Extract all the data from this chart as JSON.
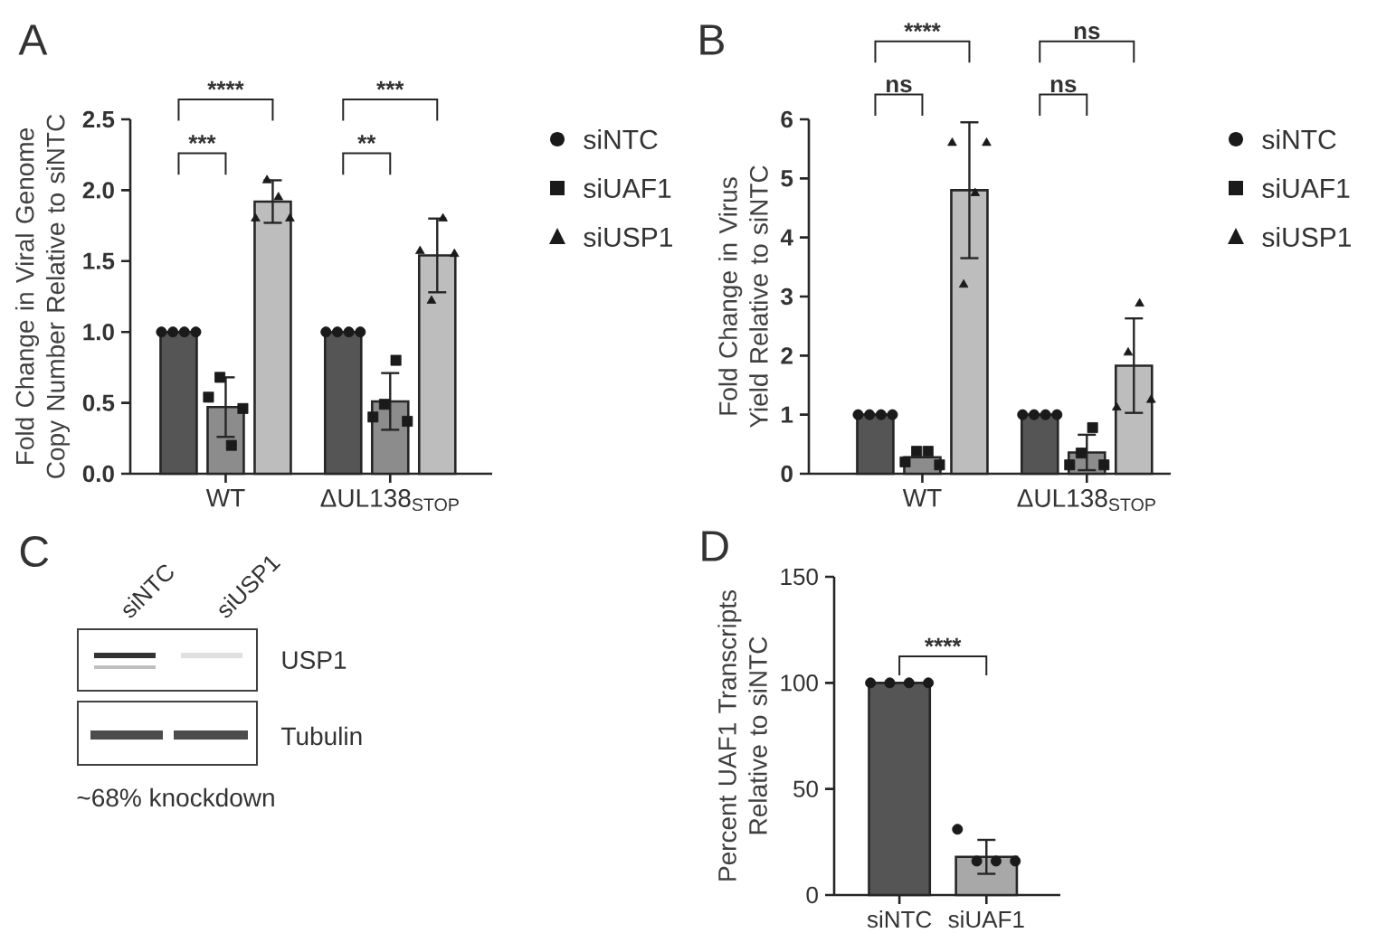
{
  "chart_data": [
    {
      "type": "bar",
      "title": "A",
      "ylabel": "Fold Change in Viral Genome Copy Number Relative to siNTC",
      "categories": [
        "WT",
        "ΔUL138$_{STOP}$"
      ],
      "ylim": [
        0,
        2.5
      ],
      "yticks": [
        {
          "value": 0,
          "label": "0.0"
        },
        {
          "value": 0.5,
          "label": "0.5"
        },
        {
          "value": 1,
          "label": "1.0"
        },
        {
          "value": 1.5,
          "label": "1.5"
        },
        {
          "value": 2,
          "label": "2.0"
        },
        {
          "value": 2.5,
          "label": "2.5"
        }
      ],
      "legend": "right",
      "annotations": [
        "***",
        "****",
        "**",
        "***"
      ],
      "series": [
        {
          "type": "bar",
          "color": "#555555",
          "values": [
            1.0,
            1.0
          ]
        },
        {
          "type": "bar",
          "color": "#8c8c8c",
          "values": [
            0.47,
            0.51
          ],
          "errors": [
            0.21,
            0.2
          ]
        },
        {
          "type": "bar",
          "color": "#bdbdbd",
          "values": [
            1.92,
            1.54
          ],
          "errors": [
            0.15,
            0.26
          ]
        },
        {
          "type": "scatter",
          "name": "siNTC",
          "color": "#1a1a1a",
          "marker": "circle",
          "x": [
            "WT",
            "WT",
            "WT",
            "WT",
            "ΔUL138$_{STOP}$",
            "ΔUL138$_{STOP}$",
            "ΔUL138$_{STOP}$",
            "ΔUL138$_{STOP}$"
          ],
          "values": [
            1.0,
            1.0,
            1.0,
            1.0,
            1.0,
            1.0,
            1.0,
            1.0
          ]
        },
        {
          "type": "scatter",
          "name": "siUAF1",
          "color": "#1a1a1a",
          "marker": "square",
          "x": [
            "WT",
            "WT",
            "WT",
            "WT",
            "ΔUL138$_{STOP}$",
            "ΔUL138$_{STOP}$",
            "ΔUL138$_{STOP}$",
            "ΔUL138$_{STOP}$"
          ],
          "values": [
            0.54,
            0.68,
            0.2,
            0.46,
            0.4,
            0.49,
            0.8,
            0.37
          ]
        },
        {
          "type": "scatter",
          "name": "siUSP1",
          "color": "#1a1a1a",
          "marker": "triangle",
          "x": [
            "WT",
            "WT",
            "WT",
            "WT",
            "ΔUL138$_{STOP}$",
            "ΔUL138$_{STOP}$",
            "ΔUL138$_{STOP}$",
            "ΔUL138$_{STOP}$"
          ],
          "values": [
            1.8,
            2.07,
            1.95,
            1.8,
            1.57,
            1.22,
            1.8,
            1.55
          ]
        }
      ]
    },
    {
      "type": "bar",
      "title": "B",
      "ylabel": "Fold Change in Virus Yield Relative to siNTC",
      "categories": [
        "WT",
        "ΔUL138$_{STOP}$"
      ],
      "ylim": [
        0,
        6
      ],
      "yticks": [
        0,
        1,
        2,
        3,
        4,
        5,
        6
      ],
      "legend": "right",
      "annotations": [
        "ns",
        "****",
        "ns",
        "ns"
      ],
      "series": [
        {
          "type": "bar",
          "color": "#555555",
          "values": [
            1.0,
            1.0
          ]
        },
        {
          "type": "bar",
          "color": "#8c8c8c",
          "values": [
            0.28,
            0.36
          ],
          "errors": [
            null,
            0.3
          ]
        },
        {
          "type": "bar",
          "color": "#bdbdbd",
          "values": [
            4.8,
            1.83
          ],
          "errors": [
            1.15,
            0.8
          ]
        },
        {
          "type": "scatter",
          "name": "siNTC",
          "color": "#1a1a1a",
          "marker": "circle",
          "x": [
            "WT",
            "WT",
            "WT",
            "WT",
            "ΔUL138$_{STOP}$",
            "ΔUL138$_{STOP}$",
            "ΔUL138$_{STOP}$",
            "ΔUL138$_{STOP}$"
          ],
          "values": [
            1.0,
            1.0,
            1.0,
            1.0,
            1.0,
            1.0,
            1.0,
            1.0
          ]
        },
        {
          "type": "scatter",
          "name": "siUAF1",
          "color": "#1a1a1a",
          "marker": "square",
          "x": [
            "WT",
            "WT",
            "WT",
            "WT",
            "ΔUL138$_{STOP}$",
            "ΔUL138$_{STOP}$",
            "ΔUL138$_{STOP}$",
            "ΔUL138$_{STOP}$"
          ],
          "values": [
            0.2,
            0.38,
            0.38,
            0.15,
            0.15,
            0.35,
            0.78,
            0.15
          ]
        },
        {
          "type": "scatter",
          "name": "siUSP1",
          "color": "#1a1a1a",
          "marker": "triangle",
          "x": [
            "WT",
            "WT",
            "WT",
            "WT",
            "ΔUL138$_{STOP}$",
            "ΔUL138$_{STOP}$",
            "ΔUL138$_{STOP}$",
            "ΔUL138$_{STOP}$"
          ],
          "values": [
            5.6,
            3.2,
            4.75,
            5.6,
            1.12,
            2.05,
            2.88,
            1.25
          ]
        }
      ]
    },
    {
      "type": "other",
      "title": "C",
      "annotations": [
        "siNTC",
        "siUSP1",
        "USP1",
        "Tubulin",
        "~68% knockdown"
      ]
    },
    {
      "type": "bar",
      "title": "D",
      "ylabel": "Percent UAF1 Transcripts Relative to siNTC",
      "categories": [
        "siNTC",
        "siUAF1"
      ],
      "ylim": [
        0,
        150
      ],
      "yticks": [
        0,
        50,
        100,
        150
      ],
      "annotations": [
        "****"
      ],
      "series": [
        {
          "type": "bar",
          "colors": [
            "#555555",
            "#a8a8a8"
          ],
          "values": [
            100,
            18
          ],
          "errors": [
            null,
            8
          ]
        },
        {
          "type": "scatter",
          "color": "#1a1a1a",
          "marker": "circle",
          "x": [
            "siNTC",
            "siNTC",
            "siNTC",
            "siNTC",
            "siUAF1",
            "siUAF1",
            "siUAF1",
            "siUAF1"
          ],
          "values": [
            100,
            100,
            100,
            100,
            31,
            16,
            16,
            16
          ]
        }
      ]
    }
  ]
}
